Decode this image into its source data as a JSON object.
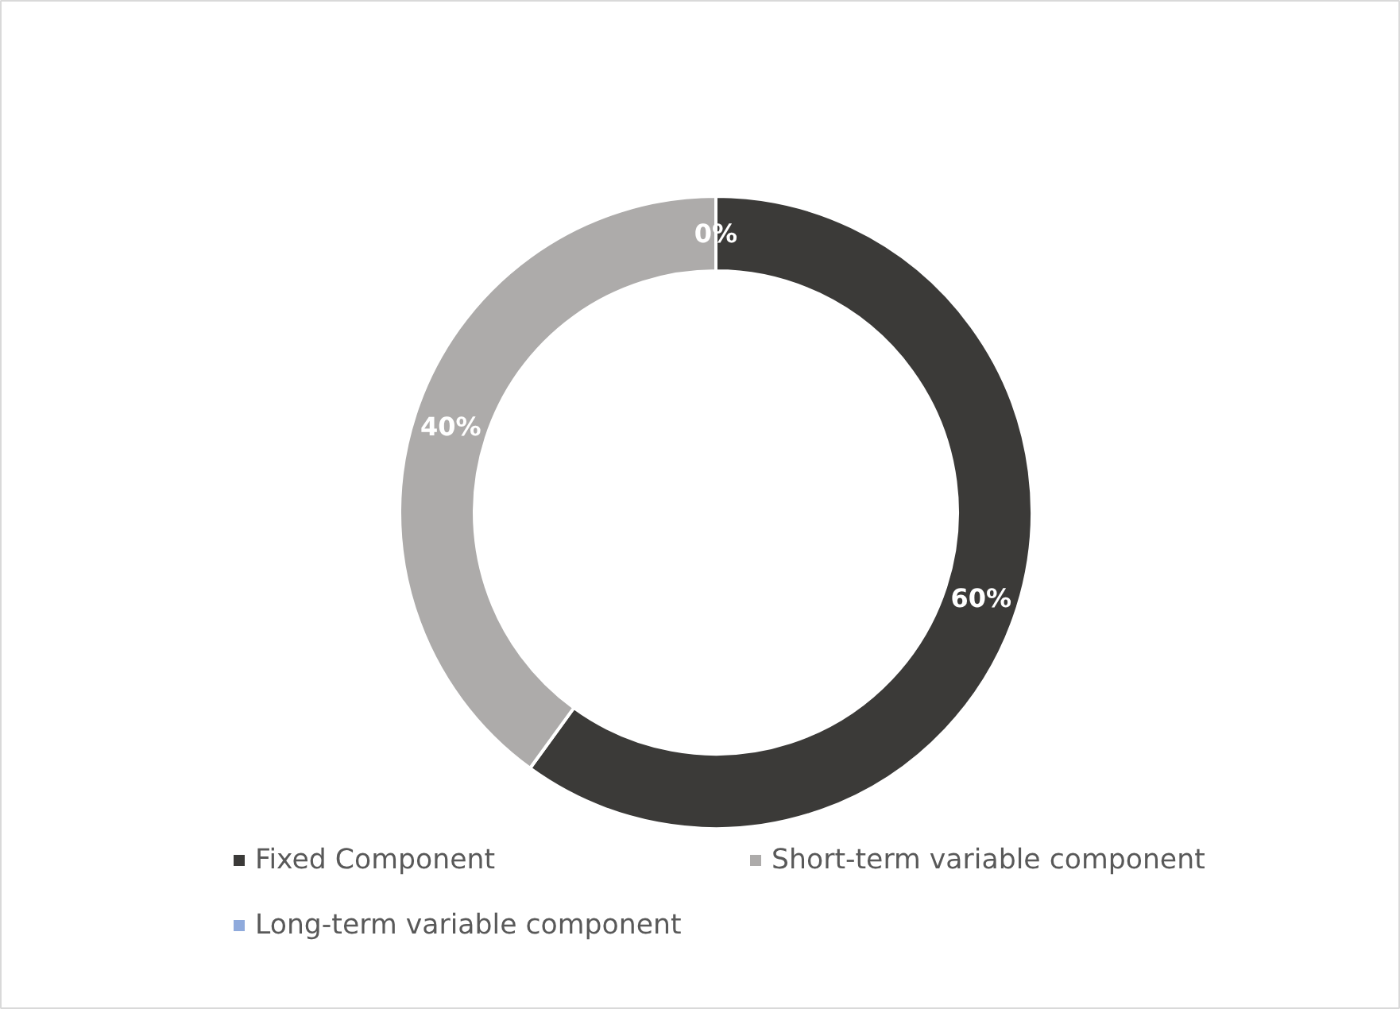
{
  "chart_data": {
    "type": "donut",
    "categories": [
      "Fixed Component",
      "Short-term variable component",
      "Long-term variable component"
    ],
    "values": [
      60,
      40,
      0
    ],
    "colors": [
      "#3b3a38",
      "#adabaa",
      "#8faadc"
    ],
    "value_labels": [
      "60%",
      "40%",
      "0%"
    ],
    "legend": "bottom"
  }
}
